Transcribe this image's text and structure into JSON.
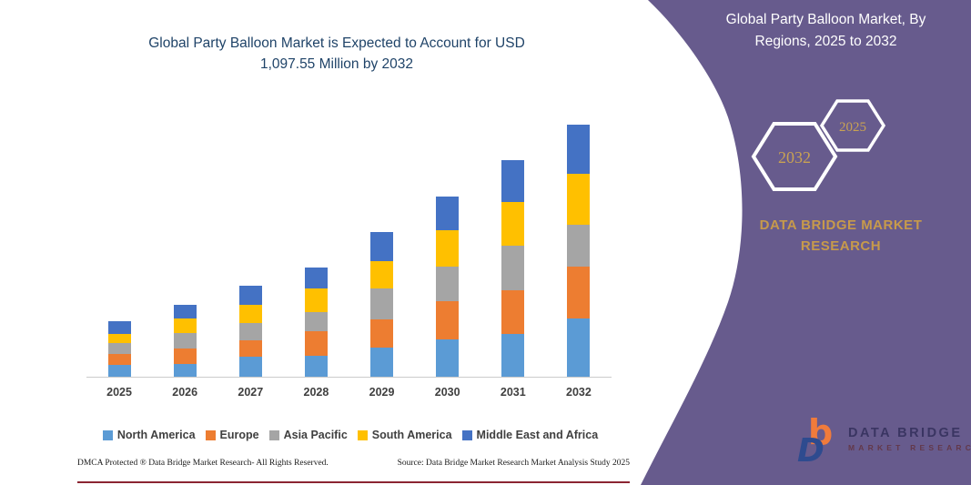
{
  "colors": {
    "panel_purple": "#675B8D",
    "gold_accent": "#C9A253",
    "title_navy": "#1F4368",
    "footer_rule_maroon": "#8B2532",
    "axis_gray": "#CBCBCB"
  },
  "header": {
    "title_lines": [
      "Global Party Balloon Market is Expected to Account for USD",
      "1,097.55 Million by 2032"
    ]
  },
  "chart_data": {
    "type": "bar",
    "stacked": true,
    "title": "Global Party Balloon Market is Expected to Account for USD 1,097.55 Million by 2032",
    "unit": "USD Million",
    "categories": [
      "2025",
      "2026",
      "2027",
      "2028",
      "2029",
      "2030",
      "2031",
      "2032"
    ],
    "series": [
      {
        "name": "North America",
        "color": "#5B9BD5",
        "values": [
          50.4,
          53.9,
          86.1,
          92.4,
          125.3,
          162.6,
          187.6,
          253.9
        ]
      },
      {
        "name": "Europe",
        "color": "#ED7D31",
        "values": [
          48.8,
          69.0,
          74.2,
          105.9,
          125.7,
          165.0,
          188.0,
          224.9
        ]
      },
      {
        "name": "Asia Pacific",
        "color": "#A5A5A5",
        "values": [
          46.4,
          68.6,
          75.4,
          82.1,
          132.1,
          152.3,
          195.5,
          184.8
        ]
      },
      {
        "name": "South America",
        "color": "#FFC000",
        "values": [
          40.9,
          63.5,
          79.3,
          103.1,
          119.0,
          158.7,
          191.6,
          218.2
        ]
      },
      {
        "name": "Middle East and Africa",
        "color": "#4472C4",
        "values": [
          55.5,
          59.5,
          82.1,
          94.0,
          128.5,
          148.0,
          181.3,
          215.8
        ]
      }
    ],
    "ylim": [
      0,
      1100
    ],
    "grid": false,
    "y_axis_visible": false,
    "legend_position": "bottom"
  },
  "footer": {
    "dmca": "DMCA Protected ® Data Bridge Market Research-  All Rights Reserved.",
    "source": "Source: Data Bridge Market Research  Market Analysis Study 2025"
  },
  "panel": {
    "title_lines": [
      "Global Party Balloon Market, By",
      "Regions, 2025 to 2032"
    ],
    "hex_large_year": "2032",
    "hex_small_year": "2025",
    "brand_lines": [
      "DATA BRIDGE MARKET",
      "RESEARCH"
    ],
    "logo_name": "DATA BRIDGE",
    "logo_sub": "MARKET RESEARCH"
  }
}
